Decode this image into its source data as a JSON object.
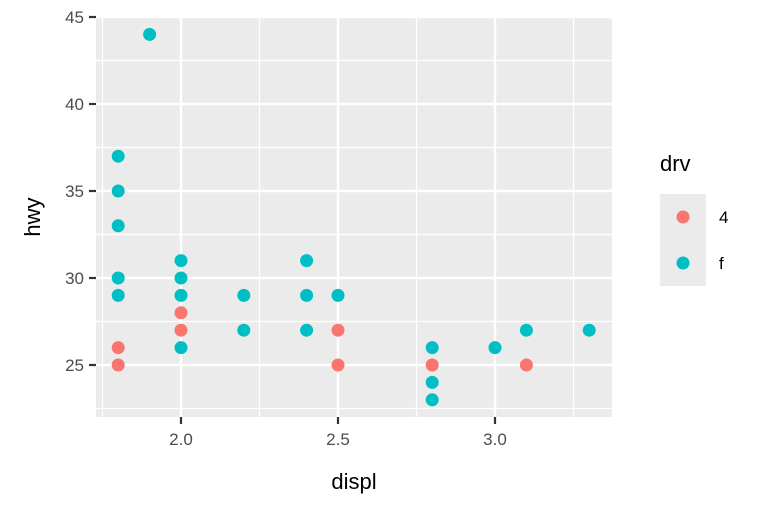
{
  "chart_data": {
    "type": "scatter",
    "title": "",
    "xlabel": "displ",
    "ylabel": "hwy",
    "xlim": [
      1.75,
      3.39
    ],
    "ylim": [
      22.1,
      45.0
    ],
    "x_ticks": [
      "2.0",
      "2.5",
      "3.0"
    ],
    "x_tick_values": [
      2.0,
      2.5,
      3.0
    ],
    "y_ticks": [
      "25",
      "30",
      "35",
      "40",
      "45"
    ],
    "y_tick_values": [
      25,
      30,
      35,
      40,
      45
    ],
    "grid": true,
    "legend": {
      "title": "drv",
      "position": "right",
      "entries": [
        {
          "label": "4",
          "color": "#F8766D"
        },
        {
          "label": "f",
          "color": "#00BFC4"
        }
      ]
    },
    "series": [
      {
        "name": "4",
        "color": "#F8766D",
        "points": [
          [
            1.8,
            26
          ],
          [
            1.8,
            25
          ],
          [
            2.0,
            28
          ],
          [
            2.0,
            27
          ],
          [
            2.5,
            27
          ],
          [
            2.5,
            25
          ],
          [
            2.8,
            25
          ],
          [
            3.1,
            25
          ]
        ]
      },
      {
        "name": "f",
        "color": "#00BFC4",
        "points": [
          [
            1.9,
            44
          ],
          [
            1.8,
            37
          ],
          [
            1.8,
            35
          ],
          [
            1.8,
            33
          ],
          [
            1.8,
            30
          ],
          [
            1.8,
            29
          ],
          [
            2.0,
            31
          ],
          [
            2.0,
            30
          ],
          [
            2.0,
            29
          ],
          [
            2.0,
            26
          ],
          [
            2.2,
            29
          ],
          [
            2.2,
            27
          ],
          [
            2.4,
            31
          ],
          [
            2.4,
            29
          ],
          [
            2.4,
            27
          ],
          [
            2.5,
            29
          ],
          [
            2.8,
            26
          ],
          [
            2.8,
            24
          ],
          [
            2.8,
            23
          ],
          [
            3.0,
            26
          ],
          [
            3.1,
            27
          ],
          [
            3.3,
            27
          ]
        ]
      }
    ]
  },
  "style": {
    "panel_bg": "#EBEBEB",
    "grid_major": "#FFFFFF",
    "tick_color": "#333333"
  }
}
